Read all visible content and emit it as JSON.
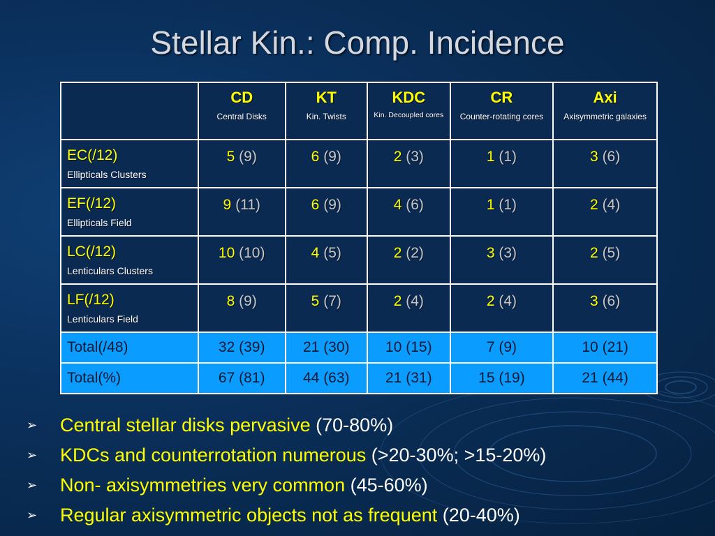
{
  "slide": {
    "title": "Stellar Kin.: Comp. Incidence"
  },
  "table": {
    "columns": [
      {
        "abbr": "CD",
        "full": "Central Disks"
      },
      {
        "abbr": "KT",
        "full": "Kin. Twists"
      },
      {
        "abbr": "KDC",
        "full": "Kin. Decoupled cores"
      },
      {
        "abbr": "CR",
        "full": "Counter-rotating cores"
      },
      {
        "abbr": "Axi",
        "full": "Axisymmetric galaxies"
      }
    ],
    "rows": [
      {
        "label": "EC(/12)",
        "sub": "Ellipticals Clusters",
        "cells": [
          {
            "v": "5",
            "p": "(9)"
          },
          {
            "v": "6",
            "p": "(9)"
          },
          {
            "v": "2",
            "p": "(3)"
          },
          {
            "v": "1",
            "p": "(1)"
          },
          {
            "v": "3",
            "p": "(6)"
          }
        ]
      },
      {
        "label": "EF(/12)",
        "sub": "Ellipticals Field",
        "cells": [
          {
            "v": "9",
            "p": "(11)"
          },
          {
            "v": "6",
            "p": "(9)"
          },
          {
            "v": "4",
            "p": "(6)"
          },
          {
            "v": "1",
            "p": "(1)"
          },
          {
            "v": "2",
            "p": "(4)"
          }
        ]
      },
      {
        "label": "LC(/12)",
        "sub": "Lenticulars Clusters",
        "cells": [
          {
            "v": "10",
            "p": "(10)"
          },
          {
            "v": "4",
            "p": "(5)"
          },
          {
            "v": "2",
            "p": "(2)"
          },
          {
            "v": "3",
            "p": "(3)"
          },
          {
            "v": "2",
            "p": "(5)"
          }
        ]
      },
      {
        "label": "LF(/12)",
        "sub": "Lenticulars Field",
        "cells": [
          {
            "v": "8",
            "p": "(9)"
          },
          {
            "v": "5",
            "p": "(7)"
          },
          {
            "v": "2",
            "p": "(4)"
          },
          {
            "v": "2",
            "p": "(4)"
          },
          {
            "v": "3",
            "p": "(6)"
          }
        ]
      }
    ],
    "totals": [
      {
        "label": "Total(/48)",
        "cells": [
          {
            "v": "32",
            "p": "(39)"
          },
          {
            "v": "21",
            "p": "(30)"
          },
          {
            "v": "10",
            "p": "(15)"
          },
          {
            "v": "7",
            "p": "(9)"
          },
          {
            "v": "10",
            "p": "(21)"
          }
        ]
      },
      {
        "label": "Total(%)",
        "cells": [
          {
            "v": "67",
            "p": "(81)"
          },
          {
            "v": "44",
            "p": "(63)"
          },
          {
            "v": "21",
            "p": "(31)"
          },
          {
            "v": "15",
            "p": "(19)"
          },
          {
            "v": "21",
            "p": "(44)"
          }
        ]
      }
    ]
  },
  "bullets": [
    {
      "main": "Central stellar disks pervasive",
      "rest": " (70-80%)"
    },
    {
      "main": "KDCs and counterrotation numerous",
      "rest": "  (>20-30%; >15-20%)"
    },
    {
      "main": "Non- axisymmetries very common",
      "rest": "  (45-60%)"
    },
    {
      "main": "Regular axisymmetric objects not as frequent",
      "rest": " (20-40%)"
    }
  ],
  "bullet_marker": "➢",
  "colors": {
    "background": "#0a2f5a",
    "title": "#d4d8de",
    "highlight": "#ffff00",
    "total_row": "#0a9cff",
    "parenthetical": "#c8c8c8"
  }
}
